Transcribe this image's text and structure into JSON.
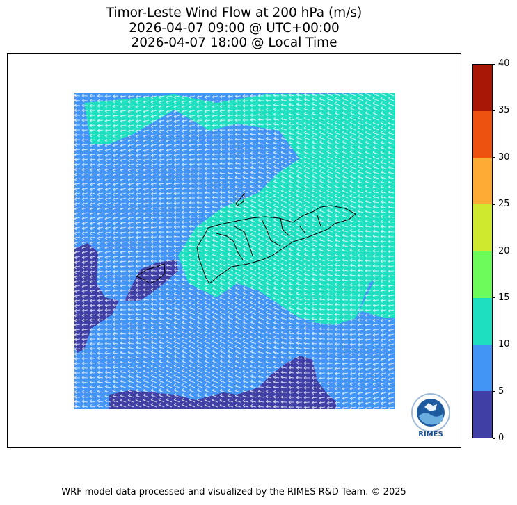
{
  "title": {
    "line1": "Timor-Leste Wind Flow at 200 hPa (m/s)",
    "line2": "2026-04-07 09:00 @ UTC+00:00",
    "line3": "2026-04-07 18:00 @ Local Time"
  },
  "colorbar": {
    "levels": [
      0,
      5,
      10,
      15,
      20,
      25,
      30,
      35,
      40
    ],
    "labels": [
      "0",
      "5",
      "10",
      "15",
      "20",
      "25",
      "30",
      "35",
      "40"
    ],
    "colors": [
      "#3f3fa6",
      "#4294f5",
      "#1ee0c0",
      "#6cfb5a",
      "#cfea2e",
      "#fdab34",
      "#ee5211",
      "#a81605"
    ]
  },
  "map": {
    "field_colors": {
      "speed_0_5": "#3f3fa6",
      "speed_5_10": "#4294f5",
      "speed_10_15": "#1ee0c0"
    },
    "prevailing_wind_direction": "from east"
  },
  "logo": {
    "text": "RIMES"
  },
  "footer": "WRF model data processed and visualized by the RIMES R&D Team. © 2025"
}
